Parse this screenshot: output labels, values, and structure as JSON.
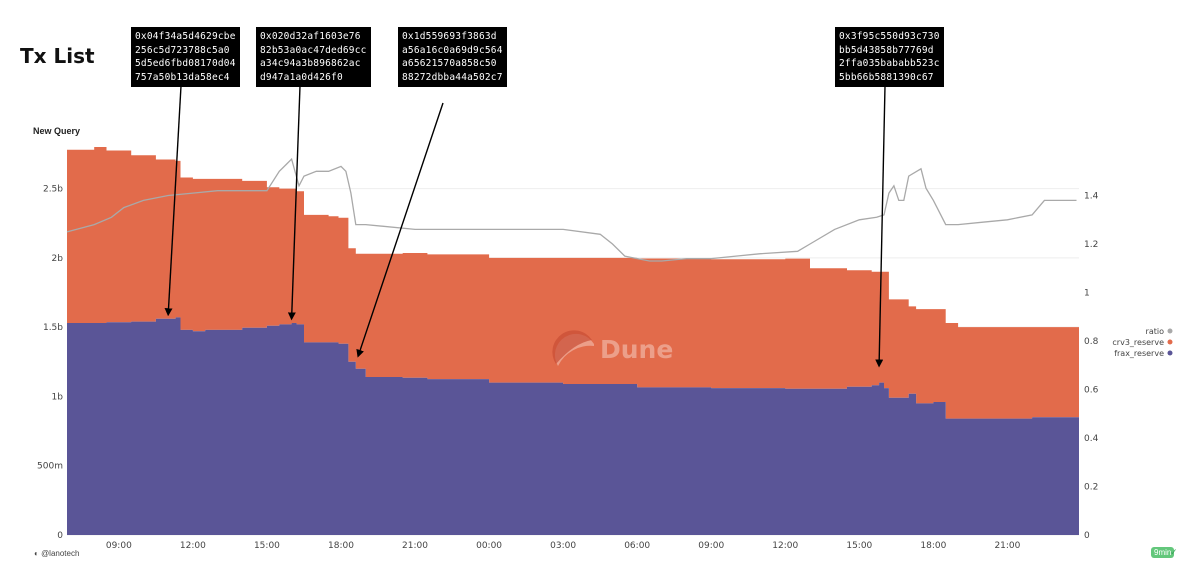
{
  "page": {
    "title": "Tx List",
    "query_title": "New Query",
    "author": "@lanotech",
    "badge": "9min",
    "badge_check": "✓",
    "watermark": "Dune"
  },
  "annotations": [
    {
      "text": "0x04f34a5d4629cbe\n256c5d723788c5a0\n5d5ed6fbd08170d04\n757a50b13da58ec4",
      "x_hour": 11.0,
      "y_value": 1.55
    },
    {
      "text": "0x020d32af1603e76\n82b53a0ac47ded69cc\na34c94a3b896862ac\nd947a1a0d426f0",
      "x_hour": 16.0,
      "y_value": 1.52
    },
    {
      "text": "0x1d559693f3863d\na56a16c0a69d9c564\na65621570a858c50\n88272dbba44a502c7",
      "x_hour": 18.7,
      "y_value": 1.25
    },
    {
      "text": "0x3f95c550d93c730\nbb5d43858b77769d\n2ffa035bababb523c\n5bb66b5881390c67",
      "x_hour": 39.8,
      "y_value": 1.18
    }
  ],
  "chart_data": {
    "type": "area",
    "stacked": true,
    "title": "New Query",
    "x_unit": "hours from 00:00 of day 1",
    "x_range": [
      6.9,
      47.9
    ],
    "x_tick_hours": [
      9,
      12,
      15,
      18,
      21,
      24,
      27,
      30,
      33,
      36,
      39,
      42,
      45
    ],
    "x_tick_labels": [
      "09:00",
      "12:00",
      "15:00",
      "18:00",
      "21:00",
      "00:00",
      "03:00",
      "06:00",
      "09:00",
      "12:00",
      "15:00",
      "18:00",
      "21:00"
    ],
    "y_left": {
      "range": [
        0,
        2.8
      ],
      "ticks": [
        0,
        0.5,
        1.0,
        1.5,
        2.0,
        2.5
      ],
      "tick_labels": [
        "0",
        "500m",
        "1b",
        "1.5b",
        "2b",
        "2.5b"
      ],
      "unit": "billions"
    },
    "y_right": {
      "range": [
        0,
        1.6
      ],
      "ticks": [
        0,
        0.2,
        0.4,
        0.6,
        0.8,
        1.0,
        1.2,
        1.4
      ],
      "tick_labels": [
        "0",
        "0.2",
        "0.4",
        "0.6",
        "0.8",
        "1",
        "1.2",
        "1.4"
      ]
    },
    "legend": {
      "position": "right",
      "entries": [
        "ratio",
        "crv3_reserve",
        "frax_reserve"
      ]
    },
    "colors": {
      "ratio": "#a9a9a9",
      "crv3_reserve": "#e26b4b",
      "frax_reserve": "#5a5597"
    },
    "series": [
      {
        "name": "frax_reserve",
        "axis": "left",
        "x": [
          6.9,
          8.5,
          9.5,
          10.5,
          11.3,
          11.5,
          12.0,
          12.5,
          13.0,
          14.0,
          15.0,
          15.5,
          16.0,
          16.2,
          16.5,
          17.5,
          17.9,
          18.3,
          18.6,
          19.0,
          20.5,
          21.5,
          24.0,
          27.0,
          30.0,
          33.0,
          36.0,
          38.5,
          39.5,
          39.8,
          40.0,
          40.2,
          40.7,
          41.0,
          41.3,
          42.0,
          42.5,
          43.0,
          45.0,
          46.0,
          47.9
        ],
        "values": [
          1.53,
          1.535,
          1.54,
          1.56,
          1.57,
          1.48,
          1.47,
          1.48,
          1.48,
          1.495,
          1.51,
          1.52,
          1.53,
          1.52,
          1.39,
          1.39,
          1.38,
          1.25,
          1.2,
          1.14,
          1.135,
          1.125,
          1.1,
          1.09,
          1.065,
          1.06,
          1.055,
          1.07,
          1.08,
          1.1,
          1.06,
          0.99,
          0.99,
          1.02,
          0.95,
          0.96,
          0.84,
          0.84,
          0.84,
          0.85,
          0.86
        ]
      },
      {
        "name": "crv3_reserve",
        "axis": "left",
        "x": [
          6.9,
          8.0,
          8.5,
          9.5,
          10.5,
          11.3,
          11.5,
          12.0,
          12.5,
          13.0,
          14.0,
          15.0,
          15.5,
          16.0,
          16.2,
          16.5,
          17.5,
          17.9,
          18.3,
          18.6,
          19.0,
          20.5,
          21.5,
          24.0,
          27.0,
          30.0,
          33.0,
          36.0,
          37.0,
          38.5,
          39.5,
          39.8,
          40.0,
          40.2,
          40.7,
          41.0,
          41.3,
          42.0,
          42.5,
          43.0,
          45.0,
          46.0,
          47.9
        ],
        "values": [
          1.25,
          1.27,
          1.24,
          1.2,
          1.15,
          1.13,
          1.1,
          1.1,
          1.09,
          1.09,
          1.06,
          1.0,
          0.98,
          0.97,
          0.96,
          0.92,
          0.91,
          0.91,
          0.82,
          0.83,
          0.89,
          0.9,
          0.9,
          0.9,
          0.91,
          0.93,
          0.93,
          0.94,
          0.87,
          0.84,
          0.82,
          0.8,
          0.84,
          0.71,
          0.71,
          0.63,
          0.68,
          0.67,
          0.69,
          0.66,
          0.66,
          0.65,
          0.64
        ]
      },
      {
        "name": "ratio",
        "axis": "right",
        "x": [
          6.9,
          8.0,
          8.7,
          9.2,
          10.0,
          11.0,
          12.0,
          13.0,
          14.0,
          15.0,
          15.5,
          15.8,
          16.0,
          16.3,
          16.5,
          17.0,
          17.5,
          18.0,
          18.2,
          18.4,
          18.6,
          19.0,
          21.0,
          24.0,
          27.0,
          28.5,
          29.0,
          29.5,
          30.0,
          30.5,
          31.0,
          32.0,
          33.0,
          34.0,
          35.0,
          36.5,
          37.0,
          38.0,
          39.0,
          39.7,
          40.0,
          40.2,
          40.4,
          40.6,
          40.8,
          41.0,
          41.5,
          41.7,
          42.0,
          42.5,
          43.0,
          44.0,
          45.0,
          46.0,
          46.5,
          47.8
        ],
        "values": [
          1.25,
          1.28,
          1.31,
          1.35,
          1.38,
          1.4,
          1.41,
          1.42,
          1.42,
          1.42,
          1.5,
          1.53,
          1.55,
          1.44,
          1.48,
          1.5,
          1.5,
          1.52,
          1.5,
          1.41,
          1.28,
          1.28,
          1.26,
          1.26,
          1.26,
          1.24,
          1.2,
          1.15,
          1.14,
          1.13,
          1.13,
          1.14,
          1.14,
          1.15,
          1.16,
          1.17,
          1.2,
          1.26,
          1.3,
          1.31,
          1.32,
          1.41,
          1.44,
          1.38,
          1.38,
          1.48,
          1.51,
          1.43,
          1.38,
          1.28,
          1.28,
          1.29,
          1.3,
          1.32,
          1.38,
          1.38
        ]
      }
    ]
  }
}
